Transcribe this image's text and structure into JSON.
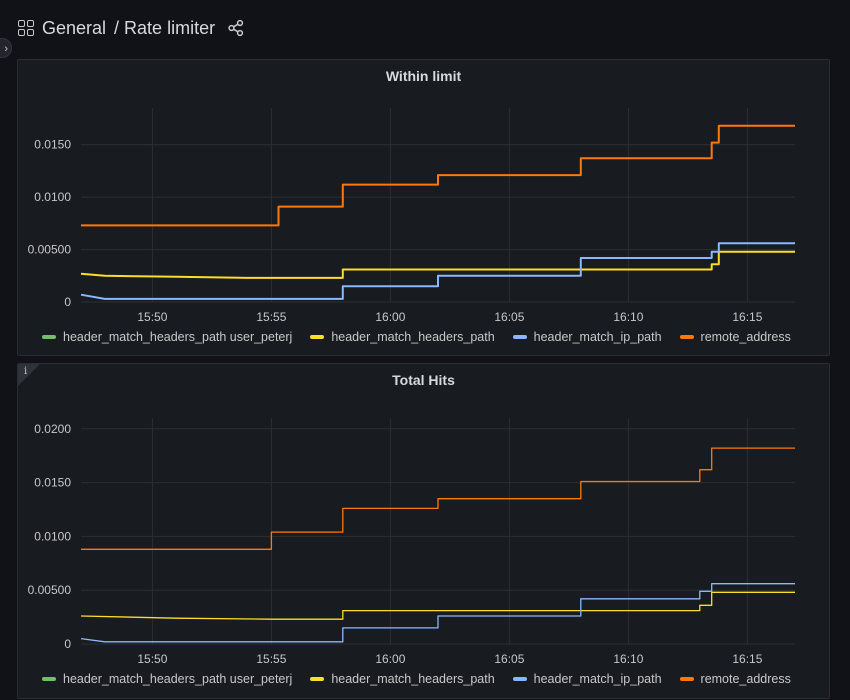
{
  "breadcrumb": {
    "folder": "General",
    "dashboard": "/ Rate limiter"
  },
  "icons": {
    "dashboards": "grid-icon",
    "share": "share-icon",
    "sidebar_toggle": "chevron-right-icon",
    "panel_info": "info-icon"
  },
  "colors": {
    "header_match_headers_path user_peterj": "#73bf69",
    "header_match_headers_path": "#fade2a",
    "header_match_ip_path": "#8ab8ff",
    "remote_address": "#ff780a"
  },
  "panels": [
    {
      "title": "Within limit",
      "chart_data": {
        "type": "line",
        "x_ticks": [
          "15:50",
          "15:55",
          "16:00",
          "16:05",
          "16:10",
          "16:15"
        ],
        "x_range": [
          "15:47",
          "16:17"
        ],
        "y_ticks": [
          "0",
          "0.00500",
          "0.0100",
          "0.0150"
        ],
        "ylim": [
          0,
          0.0185
        ],
        "grid": true,
        "legend_position": "bottom",
        "series": [
          {
            "name": "header_match_headers_path user_peterj",
            "values": []
          },
          {
            "name": "header_match_headers_path",
            "values": [
              [
                "15:47",
                0.0027
              ],
              [
                "15:48",
                0.0025
              ],
              [
                "15:51",
                0.0024
              ],
              [
                "15:54",
                0.0023
              ],
              [
                "15:58",
                0.0023
              ],
              [
                "15:58",
                0.0031
              ],
              [
                "16:08",
                0.0031
              ],
              [
                "16:13.5",
                0.0031
              ],
              [
                "16:13.5",
                0.0036
              ],
              [
                "16:13.8",
                0.0036
              ],
              [
                "16:13.8",
                0.0048
              ],
              [
                "16:17",
                0.0048
              ]
            ]
          },
          {
            "name": "header_match_ip_path",
            "values": [
              [
                "15:47",
                0.0007
              ],
              [
                "15:48",
                0.0003
              ],
              [
                "15:58",
                0.0003
              ],
              [
                "15:58",
                0.0015
              ],
              [
                "16:02",
                0.0015
              ],
              [
                "16:02",
                0.0025
              ],
              [
                "16:08",
                0.0025
              ],
              [
                "16:08",
                0.0042
              ],
              [
                "16:13.5",
                0.0042
              ],
              [
                "16:13.5",
                0.0048
              ],
              [
                "16:13.8",
                0.0048
              ],
              [
                "16:13.8",
                0.0056
              ],
              [
                "16:17",
                0.0056
              ]
            ]
          },
          {
            "name": "remote_address",
            "values": [
              [
                "15:47",
                0.0073
              ],
              [
                "15:55.3",
                0.0073
              ],
              [
                "15:55.3",
                0.0091
              ],
              [
                "15:58",
                0.0091
              ],
              [
                "15:58",
                0.0112
              ],
              [
                "16:02",
                0.0112
              ],
              [
                "16:02",
                0.0121
              ],
              [
                "16:08",
                0.0121
              ],
              [
                "16:08",
                0.0137
              ],
              [
                "16:13.5",
                0.0137
              ],
              [
                "16:13.5",
                0.0152
              ],
              [
                "16:13.8",
                0.0152
              ],
              [
                "16:13.8",
                0.0168
              ],
              [
                "16:17",
                0.0168
              ]
            ]
          }
        ]
      }
    },
    {
      "title": "Total Hits",
      "chart_data": {
        "type": "line",
        "x_ticks": [
          "15:50",
          "15:55",
          "16:00",
          "16:05",
          "16:10",
          "16:15"
        ],
        "x_range": [
          "15:47",
          "16:17"
        ],
        "y_ticks": [
          "0",
          "0.00500",
          "0.0100",
          "0.0150",
          "0.0200"
        ],
        "ylim": [
          0,
          0.021
        ],
        "grid": true,
        "legend_position": "bottom",
        "series": [
          {
            "name": "header_match_headers_path user_peterj",
            "values": []
          },
          {
            "name": "header_match_headers_path",
            "values": [
              [
                "15:47",
                0.0026
              ],
              [
                "15:51",
                0.0024
              ],
              [
                "15:55",
                0.0023
              ],
              [
                "15:58",
                0.0023
              ],
              [
                "15:58",
                0.0031
              ],
              [
                "16:08",
                0.0031
              ],
              [
                "16:13",
                0.0031
              ],
              [
                "16:13",
                0.0036
              ],
              [
                "16:13.5",
                0.0036
              ],
              [
                "16:13.5",
                0.0048
              ],
              [
                "16:17",
                0.0048
              ]
            ]
          },
          {
            "name": "header_match_ip_path",
            "values": [
              [
                "15:47",
                0.0005
              ],
              [
                "15:48",
                0.0002
              ],
              [
                "15:58",
                0.0002
              ],
              [
                "15:58",
                0.0015
              ],
              [
                "16:02",
                0.0015
              ],
              [
                "16:02",
                0.0026
              ],
              [
                "16:08",
                0.0026
              ],
              [
                "16:08",
                0.0042
              ],
              [
                "16:13",
                0.0042
              ],
              [
                "16:13",
                0.0049
              ],
              [
                "16:13.5",
                0.0049
              ],
              [
                "16:13.5",
                0.0056
              ],
              [
                "16:17",
                0.0056
              ]
            ]
          },
          {
            "name": "remote_address",
            "values": [
              [
                "15:47",
                0.0088
              ],
              [
                "15:55",
                0.0088
              ],
              [
                "15:55",
                0.0104
              ],
              [
                "15:58",
                0.0104
              ],
              [
                "15:58",
                0.0126
              ],
              [
                "16:02",
                0.0126
              ],
              [
                "16:02",
                0.0135
              ],
              [
                "16:08",
                0.0135
              ],
              [
                "16:08",
                0.0151
              ],
              [
                "16:13",
                0.0151
              ],
              [
                "16:13",
                0.0162
              ],
              [
                "16:13.5",
                0.0162
              ],
              [
                "16:13.5",
                0.0182
              ],
              [
                "16:17",
                0.0182
              ]
            ]
          }
        ]
      }
    }
  ]
}
